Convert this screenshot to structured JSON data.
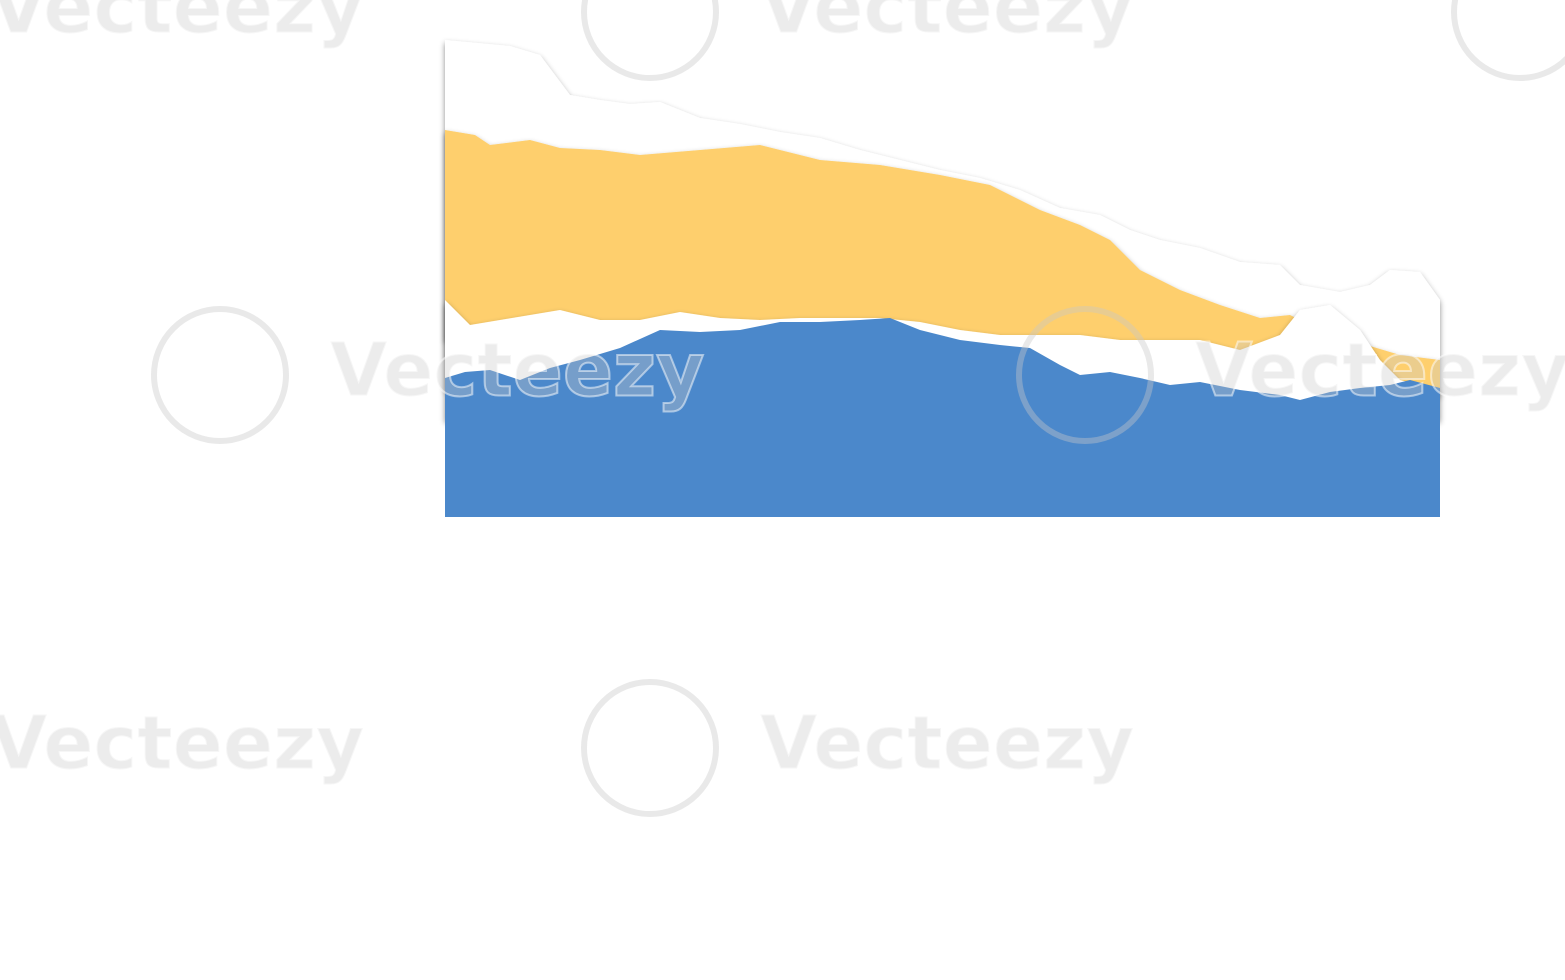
{
  "watermarks": [
    "Vecteezy",
    "Vecteezy",
    "Vecteezy",
    "Vecteezy",
    "Vecteezy",
    "Vecteezy",
    "Vecteezy"
  ]
}
